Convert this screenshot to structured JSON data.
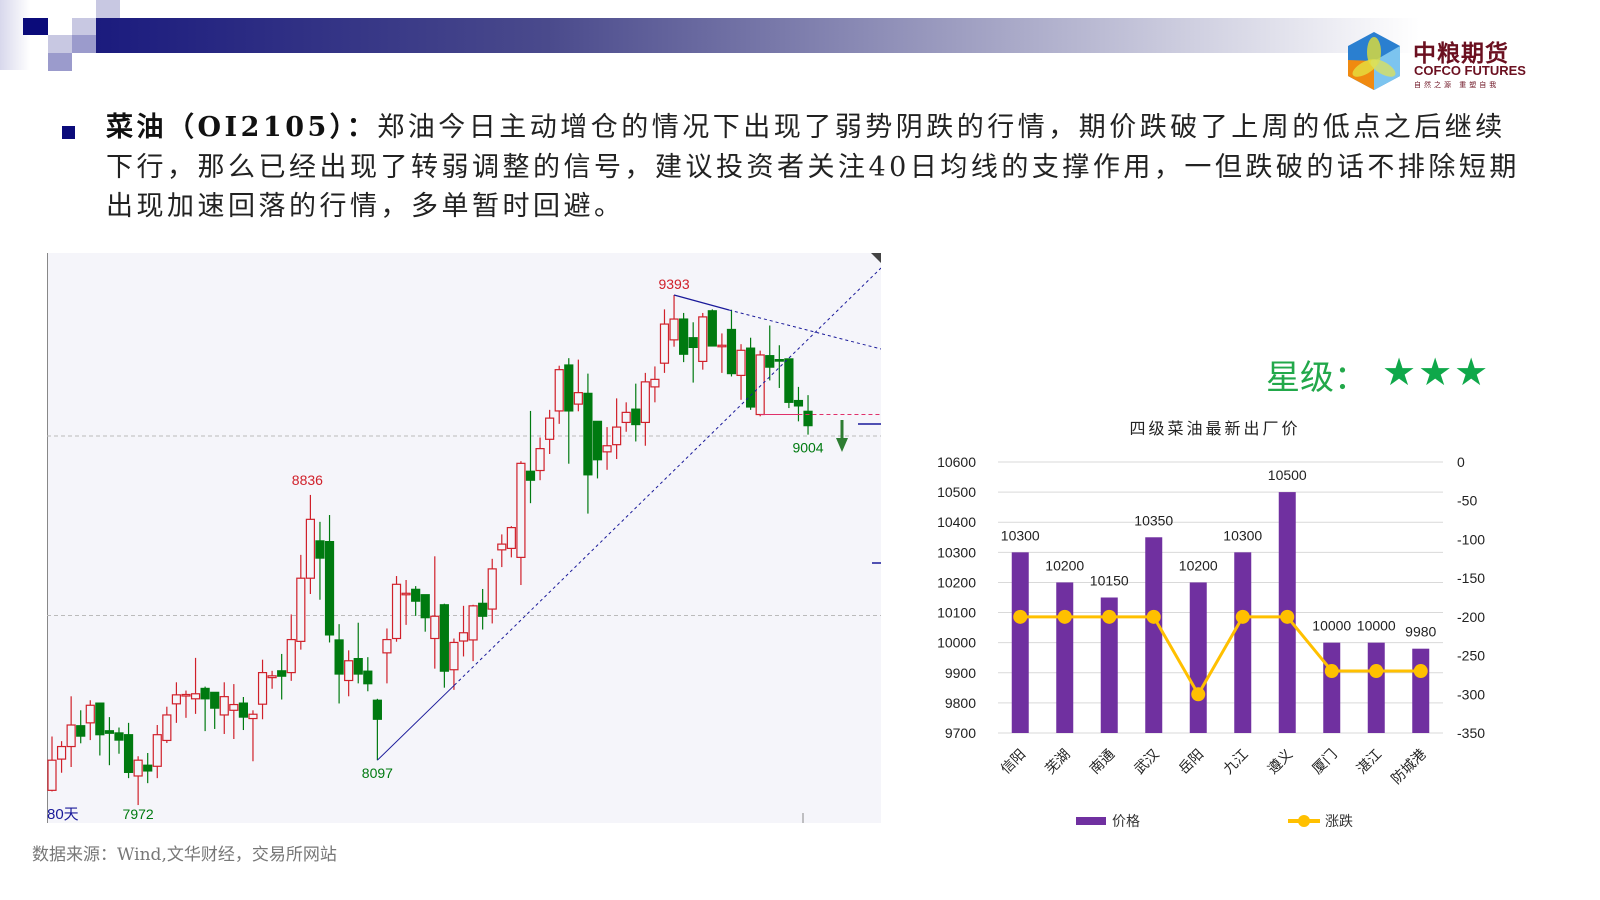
{
  "header": {
    "logo": {
      "cn": "中粮期货",
      "en": "COFCO FUTURES",
      "slogan": "自然之源 重塑自我"
    }
  },
  "content": {
    "lead": "菜油（OI2105）：",
    "body": "郑油今日主动增仓的情况下出现了弱势阴跌的行情，期价跌破了上周的低点之后继续下行，那么已经出现了转弱调整的信号，建议投资者关注40日均线的支撑作用，一但跌破的话不排除短期出现加速回落的行情，多单暂时回避。"
  },
  "rating": {
    "label": "星级：",
    "stars": "★★★",
    "count": 3,
    "color": "#0fa84a"
  },
  "source": "数据来源：Wind,文华财经，交易所网站",
  "chart_data": [
    {
      "type": "candlestick",
      "period_label": "80天",
      "annotations": {
        "high": "9393",
        "low1": "7972",
        "mid_high": "8836",
        "mid_low": "8097",
        "last": "9004"
      },
      "colors": {
        "up": "#d0202a",
        "down": "#007a10",
        "trend": "#1a1a9a"
      },
      "reference_lines": [
        9000,
        8500
      ],
      "ohlc": [
        [
          8013,
          8163,
          8010,
          8097
        ],
        [
          8100,
          8150,
          8062,
          8135
        ],
        [
          8135,
          8275,
          8078,
          8195
        ],
        [
          8193,
          8236,
          8144,
          8164
        ],
        [
          8201,
          8264,
          8153,
          8250
        ],
        [
          8256,
          8256,
          8110,
          8168
        ],
        [
          8179,
          8217,
          8083,
          8172
        ],
        [
          8173,
          8188,
          8115,
          8153
        ],
        [
          8168,
          8201,
          8047,
          8063
        ],
        [
          8053,
          8108,
          7972,
          8097
        ],
        [
          8083,
          8117,
          8033,
          8067
        ],
        [
          8080,
          8195,
          8047,
          8168
        ],
        [
          8152,
          8246,
          8145,
          8223
        ],
        [
          8254,
          8314,
          8201,
          8279
        ],
        [
          8278,
          8291,
          8215,
          8280
        ],
        [
          8268,
          8382,
          8226,
          8282
        ],
        [
          8297,
          8302,
          8178,
          8268
        ],
        [
          8286,
          8286,
          8184,
          8242
        ],
        [
          8223,
          8314,
          8170,
          8274
        ],
        [
          8236,
          8309,
          8156,
          8252
        ],
        [
          8256,
          8273,
          8181,
          8217
        ],
        [
          8213,
          8236,
          8094,
          8225
        ],
        [
          8253,
          8377,
          8211,
          8341
        ],
        [
          8327,
          8346,
          8296,
          8332
        ],
        [
          8346,
          8393,
          8266,
          8331
        ],
        [
          8341,
          8503,
          8318,
          8433
        ],
        [
          8428,
          8669,
          8405,
          8604
        ],
        [
          8604,
          8836,
          8560,
          8768
        ],
        [
          8708,
          8761,
          8544,
          8660
        ],
        [
          8706,
          8780,
          8425,
          8446
        ],
        [
          8432,
          8476,
          8255,
          8337
        ],
        [
          8319,
          8403,
          8275,
          8374
        ],
        [
          8380,
          8480,
          8311,
          8337
        ],
        [
          8345,
          8384,
          8289,
          8310
        ],
        [
          8264,
          8268,
          8097,
          8211
        ],
        [
          8396,
          8464,
          8311,
          8433
        ],
        [
          8436,
          8610,
          8427,
          8587
        ],
        [
          8560,
          8599,
          8474,
          8562
        ],
        [
          8573,
          8582,
          8499,
          8540
        ],
        [
          8558,
          8558,
          8455,
          8494
        ],
        [
          8436,
          8665,
          8352,
          8498
        ],
        [
          8530,
          8533,
          8299,
          8345
        ],
        [
          8349,
          8436,
          8293,
          8425
        ],
        [
          8429,
          8527,
          8386,
          8452
        ],
        [
          8432,
          8530,
          8373,
          8527
        ],
        [
          8534,
          8574,
          8461,
          8498
        ],
        [
          8518,
          8658,
          8478,
          8630
        ],
        [
          8683,
          8726,
          8635,
          8699
        ],
        [
          8687,
          8749,
          8662,
          8745
        ],
        [
          8662,
          8930,
          8585,
          8924
        ],
        [
          8902,
          9070,
          8813,
          8877
        ],
        [
          8904,
          8996,
          8877,
          8965
        ],
        [
          8991,
          9073,
          8950,
          9050
        ],
        [
          9070,
          9196,
          9034,
          9185
        ],
        [
          9198,
          9217,
          8923,
          9070
        ],
        [
          9089,
          9213,
          9069,
          9121
        ],
        [
          9119,
          9174,
          8784,
          8892
        ],
        [
          9041,
          9041,
          8882,
          8934
        ],
        [
          8956,
          9025,
          8906,
          8973
        ],
        [
          8976,
          9105,
          8936,
          9025
        ],
        [
          9038,
          9094,
          9012,
          9066
        ],
        [
          9075,
          9146,
          8985,
          9032
        ],
        [
          9038,
          9176,
          8973,
          9151
        ],
        [
          9137,
          9194,
          9094,
          9158
        ],
        [
          9203,
          9353,
          9176,
          9312
        ],
        [
          9268,
          9393,
          9249,
          9326
        ],
        [
          9326,
          9343,
          9206,
          9228
        ],
        [
          9274,
          9317,
          9149,
          9247
        ],
        [
          9208,
          9343,
          9185,
          9332
        ],
        [
          9349,
          9353,
          9251,
          9251
        ],
        [
          9253,
          9286,
          9176,
          9253
        ],
        [
          9297,
          9352,
          9166,
          9174
        ],
        [
          9169,
          9256,
          9101,
          9239
        ],
        [
          9245,
          9274,
          9073,
          9081
        ],
        [
          9060,
          9238,
          9055,
          9226
        ],
        [
          9224,
          9308,
          9155,
          9192
        ],
        [
          9213,
          9253,
          9134,
          9211
        ],
        [
          9215,
          9215,
          9078,
          9094
        ],
        [
          9099,
          9137,
          9041,
          9084
        ],
        [
          9069,
          9114,
          9004,
          9029
        ]
      ]
    },
    {
      "type": "bar+line",
      "title": "四级菜油最新出厂价",
      "categories": [
        "信阳",
        "芜湖",
        "南通",
        "武汉",
        "岳阳",
        "九江",
        "遵义",
        "厦门",
        "湛江",
        "防城港"
      ],
      "series": [
        {
          "name": "价格",
          "type": "bar",
          "axis": "left",
          "color": "#7030a0",
          "values": [
            10300,
            10200,
            10150,
            10350,
            10200,
            10300,
            10500,
            10000,
            10000,
            9980
          ]
        },
        {
          "name": "涨跌",
          "type": "line",
          "axis": "right",
          "color": "#ffc000",
          "values": [
            -200,
            -200,
            -200,
            -200,
            -300,
            -200,
            -200,
            -270,
            -270,
            -270
          ]
        }
      ],
      "left_axis": {
        "min": 9700,
        "max": 10600,
        "step": 100
      },
      "right_axis": {
        "min": -350,
        "max": 0,
        "step": 50
      },
      "grid": true,
      "legend": "bottom"
    }
  ]
}
